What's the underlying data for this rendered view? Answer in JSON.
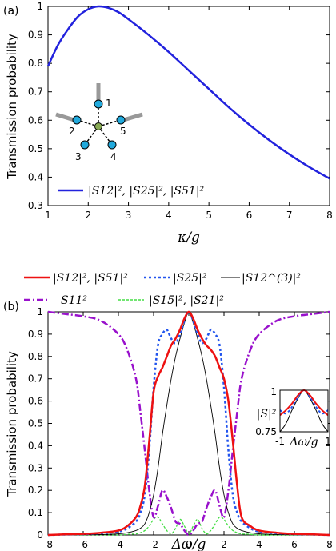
{
  "colors": {
    "blue_solid": "#2222dd",
    "red": "#ee1111",
    "blue_dot": "#2255ee",
    "thin": "#000000",
    "purple": "#9911cc",
    "green": "#44dd44",
    "node_fill": "#22aadd",
    "center_fill": "#88aa55"
  },
  "chart_data": [
    {
      "type": "line",
      "panel_label": "(a)",
      "xlabel": "κ/g",
      "ylabel": "Transmission probability",
      "xlim": [
        1,
        8
      ],
      "ylim": [
        0.3,
        1.0
      ],
      "xticks": [
        "1",
        "2",
        "3",
        "4",
        "5",
        "6",
        "7",
        "8"
      ],
      "yticks": [
        "0.3",
        "0.4",
        "0.5",
        "0.6",
        "0.7",
        "0.8",
        "0.9",
        "1"
      ],
      "series": [
        {
          "name": "|S12|², |S25|², |S51|²",
          "x": [
            1.0,
            1.25,
            1.5,
            1.75,
            2.0,
            2.25,
            2.5,
            2.75,
            3.0,
            3.5,
            4.0,
            4.5,
            5.0,
            5.5,
            6.0,
            6.5,
            7.0,
            7.5,
            8.0
          ],
          "values": [
            0.79,
            0.865,
            0.92,
            0.965,
            0.99,
            1.0,
            0.995,
            0.98,
            0.955,
            0.9,
            0.84,
            0.775,
            0.71,
            0.645,
            0.585,
            0.53,
            0.48,
            0.435,
            0.395
          ]
        }
      ],
      "inset_nodes": [
        "1",
        "2",
        "3",
        "4",
        "5"
      ],
      "legend_position": "bottom"
    },
    {
      "type": "line",
      "panel_label": "(b)",
      "xlabel": "Δω/g",
      "ylabel": "Transmission probability",
      "xlim": [
        -8,
        8
      ],
      "ylim": [
        0,
        1.0
      ],
      "xticks": [
        "-8",
        "-6",
        "-4",
        "-2",
        "0",
        "2",
        "4",
        "6",
        "8"
      ],
      "yticks": [
        "0",
        "0.1",
        "0.2",
        "0.3",
        "0.4",
        "0.5",
        "0.6",
        "0.7",
        "0.8",
        "0.9",
        "1"
      ],
      "x": [
        -8,
        -7,
        -6,
        -5,
        -4,
        -3.5,
        -3,
        -2.75,
        -2.5,
        -2.25,
        -2,
        -1.75,
        -1.5,
        -1.25,
        -1,
        -0.75,
        -0.5,
        -0.25,
        0,
        0.25,
        0.5,
        0.75,
        1,
        1.25,
        1.5,
        1.75,
        2,
        2.25,
        2.5,
        2.75,
        3,
        3.5,
        4,
        5,
        6,
        7,
        8
      ],
      "series": [
        {
          "name": "|S12|², |S51|²",
          "values": [
            0.0,
            0.003,
            0.005,
            0.01,
            0.02,
            0.04,
            0.08,
            0.13,
            0.22,
            0.42,
            0.64,
            0.71,
            0.75,
            0.8,
            0.85,
            0.88,
            0.92,
            0.97,
            1.0,
            0.97,
            0.92,
            0.88,
            0.85,
            0.83,
            0.8,
            0.75,
            0.7,
            0.6,
            0.42,
            0.22,
            0.08,
            0.04,
            0.02,
            0.01,
            0.005,
            0.003,
            0.0
          ]
        },
        {
          "name": "|S25|²",
          "values": [
            0.0,
            0.002,
            0.004,
            0.008,
            0.015,
            0.03,
            0.06,
            0.1,
            0.18,
            0.38,
            0.66,
            0.85,
            0.9,
            0.92,
            0.88,
            0.86,
            0.9,
            0.96,
            1.0,
            0.96,
            0.9,
            0.86,
            0.88,
            0.92,
            0.9,
            0.85,
            0.66,
            0.38,
            0.18,
            0.1,
            0.06,
            0.03,
            0.015,
            0.008,
            0.004,
            0.002,
            0.0
          ]
        },
        {
          "name": "|S12^(3)|²",
          "values": [
            0.0,
            0.0,
            0.001,
            0.002,
            0.005,
            0.01,
            0.02,
            0.03,
            0.05,
            0.1,
            0.18,
            0.3,
            0.45,
            0.58,
            0.7,
            0.8,
            0.88,
            0.95,
            1.0,
            0.95,
            0.88,
            0.8,
            0.7,
            0.58,
            0.45,
            0.3,
            0.18,
            0.1,
            0.05,
            0.03,
            0.02,
            0.01,
            0.005,
            0.002,
            0.001,
            0.0,
            0.0
          ]
        },
        {
          "name": "S11²",
          "values": [
            1.0,
            0.99,
            0.98,
            0.96,
            0.9,
            0.83,
            0.7,
            0.55,
            0.38,
            0.2,
            0.08,
            0.13,
            0.2,
            0.17,
            0.12,
            0.06,
            0.05,
            0.02,
            0.0,
            0.02,
            0.05,
            0.06,
            0.12,
            0.17,
            0.2,
            0.13,
            0.08,
            0.2,
            0.38,
            0.55,
            0.7,
            0.83,
            0.9,
            0.96,
            0.98,
            0.99,
            1.0
          ]
        },
        {
          "name": "|S15|², |S21|²",
          "values": [
            0.0,
            0.0,
            0.0,
            0.0,
            0.0,
            0.003,
            0.005,
            0.01,
            0.02,
            0.04,
            0.07,
            0.08,
            0.05,
            0.02,
            0.005,
            0.03,
            0.07,
            0.04,
            0.005,
            0.04,
            0.07,
            0.03,
            0.005,
            0.02,
            0.05,
            0.08,
            0.07,
            0.04,
            0.02,
            0.01,
            0.005,
            0.003,
            0.0,
            0.0,
            0.0,
            0.0,
            0.0
          ]
        }
      ],
      "legend_labels": {
        "s12": "|S12|², |S51|²",
        "s25": "|S25|²",
        "s12_3": "|S12^(3)|²",
        "s11": "S11²",
        "s15": "|S15|², |S21|²"
      },
      "inset": {
        "ylabel": "|S|²",
        "xlabel": "Δω/g",
        "xlim": [
          -1,
          1
        ],
        "ylim": [
          0.75,
          1.0
        ],
        "xticks": [
          "-1",
          "1"
        ],
        "yticks": [
          "0.75",
          "1"
        ]
      }
    }
  ]
}
